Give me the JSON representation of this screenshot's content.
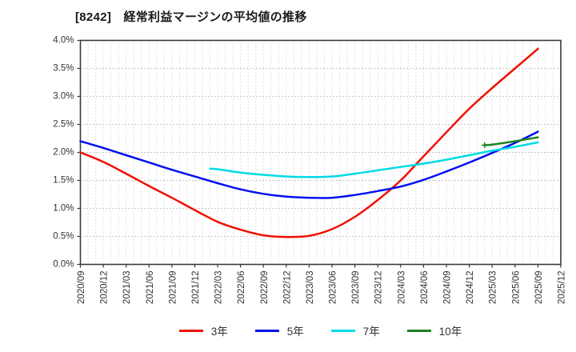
{
  "chart_data": {
    "type": "line",
    "title": "[8242]　経常利益マージンの平均値の推移",
    "x_categories": [
      "2020/09",
      "2020/12",
      "2021/03",
      "2021/06",
      "2021/09",
      "2021/12",
      "2022/03",
      "2022/06",
      "2022/09",
      "2022/12",
      "2023/03",
      "2023/06",
      "2023/09",
      "2023/12",
      "2024/03",
      "2024/06",
      "2024/09",
      "2024/12",
      "2025/03",
      "2025/06",
      "2025/09",
      "2025/12"
    ],
    "x_range": [
      "2020/09",
      "2025/12"
    ],
    "ylim": [
      0.0,
      4.0
    ],
    "ytick_step": 0.5,
    "ytick_labels": [
      "0.0%",
      "0.5%",
      "1.0%",
      "1.5%",
      "2.0%",
      "2.5%",
      "3.0%",
      "3.5%",
      "4.0%"
    ],
    "y_unit": "%",
    "grid": {
      "show": true,
      "h_color": "#909090",
      "v_color": "#c6c6c6",
      "style": "dotted",
      "v_minor_unit": "month"
    },
    "legend_position": "bottom",
    "colors": {
      "spine": "#3a3a3a",
      "tick_label": "#333333",
      "title": "#1a1a1a"
    },
    "series": [
      {
        "key": "3y",
        "name": "3年",
        "color": "#ee1100",
        "points": [
          [
            "2020/09",
            2.0
          ],
          [
            "2020/12",
            1.83
          ],
          [
            "2021/03",
            1.62
          ],
          [
            "2021/06",
            1.4
          ],
          [
            "2021/09",
            1.19
          ],
          [
            "2021/12",
            0.97
          ],
          [
            "2022/03",
            0.76
          ],
          [
            "2022/06",
            0.62
          ],
          [
            "2022/09",
            0.52
          ],
          [
            "2022/12",
            0.49
          ],
          [
            "2023/03",
            0.51
          ],
          [
            "2023/06",
            0.63
          ],
          [
            "2023/09",
            0.85
          ],
          [
            "2023/12",
            1.15
          ],
          [
            "2024/03",
            1.5
          ],
          [
            "2024/06",
            1.93
          ],
          [
            "2024/09",
            2.36
          ],
          [
            "2024/12",
            2.78
          ],
          [
            "2025/03",
            3.15
          ],
          [
            "2025/06",
            3.5
          ],
          [
            "2025/09",
            3.85
          ]
        ]
      },
      {
        "key": "5y",
        "name": "5年",
        "color": "#0010ee",
        "points": [
          [
            "2020/09",
            2.2
          ],
          [
            "2020/12",
            2.08
          ],
          [
            "2021/03",
            1.95
          ],
          [
            "2021/06",
            1.82
          ],
          [
            "2021/09",
            1.69
          ],
          [
            "2021/12",
            1.57
          ],
          [
            "2022/03",
            1.45
          ],
          [
            "2022/06",
            1.34
          ],
          [
            "2022/09",
            1.26
          ],
          [
            "2022/12",
            1.21
          ],
          [
            "2023/03",
            1.19
          ],
          [
            "2023/06",
            1.19
          ],
          [
            "2023/09",
            1.24
          ],
          [
            "2023/12",
            1.31
          ],
          [
            "2024/03",
            1.39
          ],
          [
            "2024/06",
            1.51
          ],
          [
            "2024/09",
            1.66
          ],
          [
            "2024/12",
            1.82
          ],
          [
            "2025/03",
            1.99
          ],
          [
            "2025/06",
            2.17
          ],
          [
            "2025/09",
            2.37
          ]
        ]
      },
      {
        "key": "7y",
        "name": "7年",
        "color": "#00dbe6",
        "points": [
          [
            "2022/02",
            1.71
          ],
          [
            "2022/03",
            1.7
          ],
          [
            "2022/06",
            1.64
          ],
          [
            "2022/09",
            1.6
          ],
          [
            "2022/12",
            1.57
          ],
          [
            "2023/03",
            1.56
          ],
          [
            "2023/06",
            1.57
          ],
          [
            "2023/09",
            1.62
          ],
          [
            "2023/12",
            1.68
          ],
          [
            "2024/03",
            1.74
          ],
          [
            "2024/06",
            1.8
          ],
          [
            "2024/09",
            1.87
          ],
          [
            "2024/12",
            1.95
          ],
          [
            "2025/03",
            2.03
          ],
          [
            "2025/06",
            2.1
          ],
          [
            "2025/09",
            2.18
          ]
        ]
      },
      {
        "key": "10y",
        "name": "10年",
        "color": "#1e8220",
        "start_marker": "plus",
        "points": [
          [
            "2025/02",
            2.13
          ],
          [
            "2025/03",
            2.14
          ],
          [
            "2025/06",
            2.2
          ],
          [
            "2025/09",
            2.27
          ]
        ]
      }
    ]
  }
}
